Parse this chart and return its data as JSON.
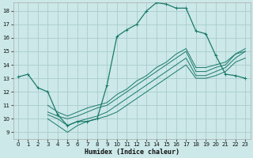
{
  "xlabel": "Humidex (Indice chaleur)",
  "background_color": "#cce8e8",
  "grid_color": "#aacccc",
  "line_color": "#1a7a6a",
  "xlim": [
    -0.5,
    23.5
  ],
  "ylim": [
    8.5,
    18.6
  ],
  "yticks": [
    9,
    10,
    11,
    12,
    13,
    14,
    15,
    16,
    17,
    18
  ],
  "xticks": [
    0,
    1,
    2,
    3,
    4,
    5,
    6,
    7,
    8,
    9,
    10,
    11,
    12,
    13,
    14,
    15,
    16,
    17,
    18,
    19,
    20,
    21,
    22,
    23
  ],
  "main_x": [
    0,
    1,
    2,
    3,
    4,
    5,
    6,
    7,
    8,
    9,
    10,
    11,
    12,
    13,
    14,
    15,
    16,
    17,
    18,
    19,
    20,
    21,
    22,
    23
  ],
  "main_y": [
    13.1,
    13.3,
    12.3,
    12.0,
    10.3,
    9.5,
    9.8,
    9.8,
    10.0,
    12.5,
    16.1,
    16.6,
    17.0,
    18.0,
    18.6,
    18.5,
    18.2,
    18.2,
    16.5,
    16.3,
    14.7,
    13.3,
    13.2,
    13.0
  ],
  "fan_lines": [
    {
      "pts_x": [
        3,
        4,
        5,
        6,
        7,
        8,
        9,
        10,
        11,
        12,
        13,
        14,
        15,
        16,
        17,
        18,
        19,
        20,
        21,
        22,
        23
      ],
      "pts_y": [
        10.0,
        9.5,
        9.0,
        9.5,
        9.8,
        10.0,
        10.2,
        10.5,
        11.0,
        11.5,
        12.0,
        12.5,
        13.0,
        13.5,
        14.0,
        13.0,
        13.0,
        13.2,
        13.5,
        14.2,
        14.5
      ]
    },
    {
      "pts_x": [
        3,
        4,
        5,
        6,
        7,
        8,
        9,
        10,
        11,
        12,
        13,
        14,
        15,
        16,
        17,
        18,
        19,
        20,
        21,
        22,
        23
      ],
      "pts_y": [
        10.3,
        10.0,
        9.5,
        9.8,
        10.0,
        10.2,
        10.5,
        11.0,
        11.5,
        12.0,
        12.5,
        13.0,
        13.5,
        14.0,
        14.5,
        13.2,
        13.2,
        13.5,
        13.8,
        14.5,
        15.0
      ]
    },
    {
      "pts_x": [
        3,
        4,
        5,
        6,
        7,
        8,
        9,
        10,
        11,
        12,
        13,
        14,
        15,
        16,
        17,
        18,
        19,
        20,
        21,
        22,
        23
      ],
      "pts_y": [
        10.5,
        10.2,
        10.0,
        10.2,
        10.5,
        10.8,
        11.0,
        11.5,
        12.0,
        12.5,
        13.0,
        13.5,
        14.0,
        14.5,
        15.0,
        13.5,
        13.5,
        13.8,
        14.0,
        14.8,
        15.0
      ]
    },
    {
      "pts_x": [
        3,
        4,
        5,
        6,
        7,
        8,
        9,
        10,
        11,
        12,
        13,
        14,
        15,
        16,
        17,
        18,
        19,
        20,
        21,
        22,
        23
      ],
      "pts_y": [
        11.0,
        10.5,
        10.2,
        10.5,
        10.8,
        11.0,
        11.2,
        11.8,
        12.2,
        12.8,
        13.2,
        13.8,
        14.2,
        14.8,
        15.2,
        13.8,
        13.8,
        14.0,
        14.2,
        14.8,
        15.2
      ]
    }
  ]
}
